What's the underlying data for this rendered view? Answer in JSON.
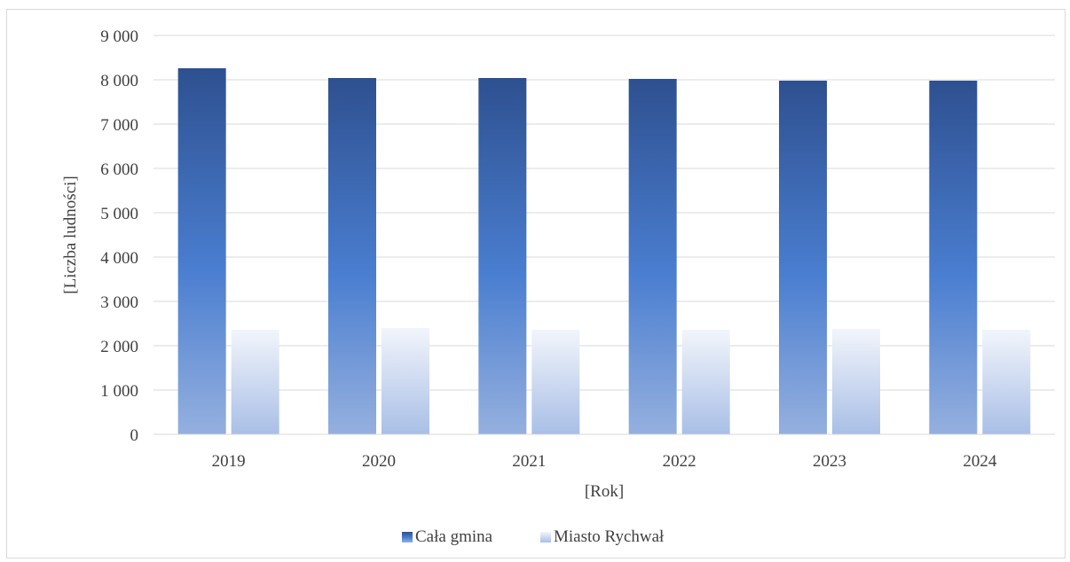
{
  "chart_data": {
    "type": "bar",
    "categories": [
      "2019",
      "2020",
      "2021",
      "2022",
      "2023",
      "2024"
    ],
    "series": [
      {
        "name": "Cała gmina",
        "values": [
          8260,
          8040,
          8040,
          8020,
          7980,
          7980
        ],
        "color_top": "#2e5090",
        "color_mid": "#4a7ed0",
        "color_bottom": "#95b0df"
      },
      {
        "name": "Miasto Rychwał",
        "values": [
          2360,
          2400,
          2360,
          2360,
          2380,
          2360
        ],
        "color_top": "#f2f5fb",
        "color_bottom": "#a9bfe6"
      }
    ],
    "ylim": [
      0,
      9000
    ],
    "yticks": [
      0,
      1000,
      2000,
      3000,
      4000,
      5000,
      6000,
      7000,
      8000,
      9000
    ],
    "ytick_labels": [
      "0",
      "1 000",
      "2 000",
      "3 000",
      "4 000",
      "5 000",
      "6 000",
      "7 000",
      "8 000",
      "9 000"
    ],
    "xlabel": "[Rok]",
    "ylabel": "[Liczba ludności]",
    "grid": true,
    "legend_position": "bottom"
  }
}
